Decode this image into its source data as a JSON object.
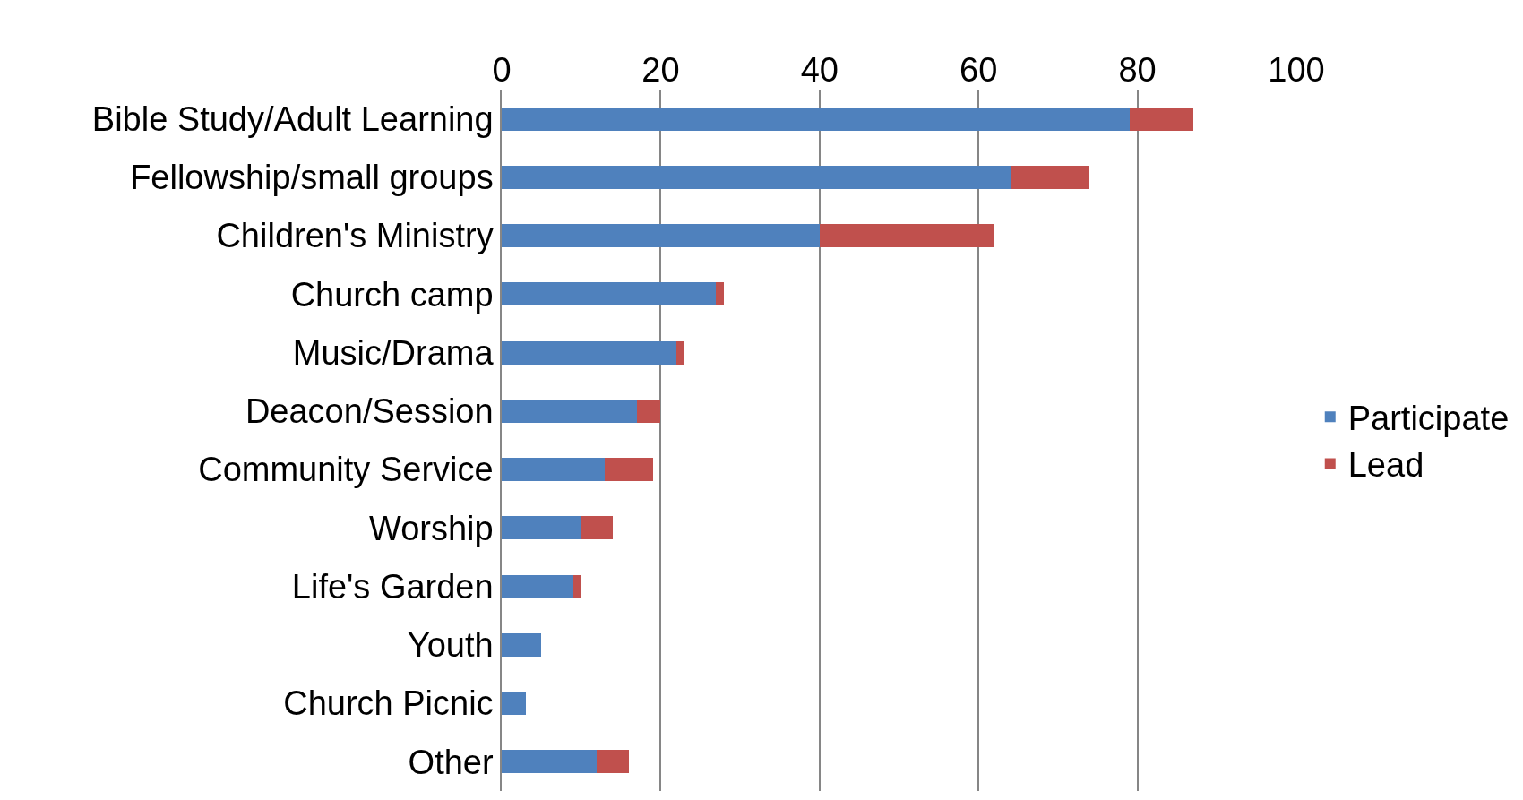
{
  "chart_data": {
    "type": "bar",
    "orientation": "horizontal",
    "stacked": true,
    "categories": [
      "Bible Study/Adult Learning",
      "Fellowship/small groups",
      "Children's Ministry",
      "Church camp",
      "Music/Drama",
      "Deacon/Session",
      "Community Service",
      "Worship",
      "Life's Garden",
      "Youth",
      "Church Picnic",
      "Other"
    ],
    "series": [
      {
        "name": "Participate",
        "color": "#4f81bd",
        "values": [
          79,
          64,
          40,
          27,
          22,
          17,
          13,
          10,
          9,
          5,
          3,
          12
        ]
      },
      {
        "name": "Lead",
        "color": "#c0504d",
        "values": [
          8,
          10,
          22,
          1,
          1,
          3,
          6,
          4,
          1,
          0,
          0,
          4
        ]
      }
    ],
    "xlim": [
      0,
      100
    ],
    "xticks": [
      0,
      20,
      40,
      60,
      80,
      100
    ],
    "grid": "x",
    "legend": "right"
  }
}
